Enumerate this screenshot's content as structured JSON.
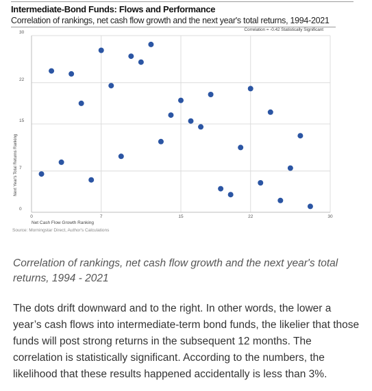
{
  "chart_data": {
    "type": "scatter",
    "title": "Intermediate-Bond Funds: Flows and Performance",
    "subtitle": "Correlation of rankings, net cash flow growth and the next year's total returns, 1994-2021",
    "annotation": "Correlation = -0.42 Statistically Significant",
    "xlabel": "Net Cash Flow Growth Ranking",
    "ylabel": "Next Year's Total Returns Ranking",
    "xlim": [
      0,
      30
    ],
    "ylim": [
      0,
      30
    ],
    "xticks": [
      0,
      7,
      15,
      22,
      30
    ],
    "yticks": [
      0,
      7,
      15,
      22,
      30
    ],
    "x_tick_labels": [
      "0",
      "7",
      "15",
      "22",
      "30"
    ],
    "y_tick_labels": [
      "0",
      "7",
      "15",
      "22",
      "30"
    ],
    "color": "#2b55a3",
    "grid": true,
    "points": [
      {
        "x": 1,
        "y": 6.5
      },
      {
        "x": 2,
        "y": 24
      },
      {
        "x": 3,
        "y": 8.5
      },
      {
        "x": 4,
        "y": 23.5
      },
      {
        "x": 5,
        "y": 18.5
      },
      {
        "x": 6,
        "y": 5.5
      },
      {
        "x": 7,
        "y": 27.5
      },
      {
        "x": 8,
        "y": 21.5
      },
      {
        "x": 9,
        "y": 9.5
      },
      {
        "x": 10,
        "y": 26.5
      },
      {
        "x": 11,
        "y": 25.5
      },
      {
        "x": 12,
        "y": 28.5
      },
      {
        "x": 13,
        "y": 12
      },
      {
        "x": 14,
        "y": 16.5
      },
      {
        "x": 15,
        "y": 19
      },
      {
        "x": 16,
        "y": 15.5
      },
      {
        "x": 17,
        "y": 14.5
      },
      {
        "x": 18,
        "y": 20
      },
      {
        "x": 19,
        "y": 4
      },
      {
        "x": 20,
        "y": 3
      },
      {
        "x": 21,
        "y": 11
      },
      {
        "x": 22,
        "y": 21
      },
      {
        "x": 23,
        "y": 5
      },
      {
        "x": 24,
        "y": 17
      },
      {
        "x": 25,
        "y": 2
      },
      {
        "x": 26,
        "y": 7.5
      },
      {
        "x": 27,
        "y": 13
      },
      {
        "x": 28,
        "y": 1
      }
    ],
    "source": "Source: Morningstar Direct, Author's Calculations"
  },
  "caption": "Correlation of rankings, net cash flow growth and the next year's total returns, 1994 - 2021",
  "body": "The dots drift downward and to the right. In other words, the lower a year’s cash flows into intermediate-term bond funds, the likelier that those funds will post strong returns in the subsequent 12 months. The correlation is statistically significant. According to the numbers, the likelihood that these results happened accidentally is less than 3%."
}
